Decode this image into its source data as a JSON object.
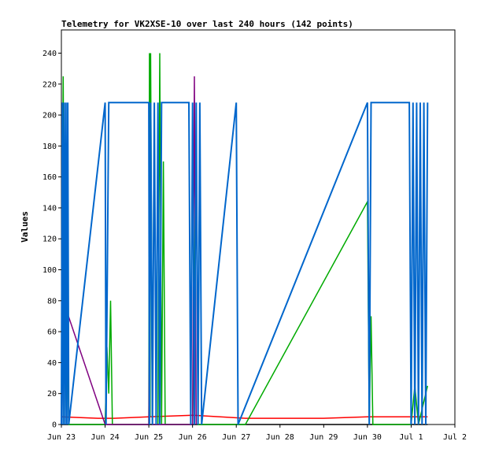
{
  "chart_data": {
    "type": "line",
    "title": "Telemetry for VK2XSE-10 over last 240 hours (142 points)",
    "ylabel": "Values",
    "xlabel": "",
    "ylim": [
      0,
      255
    ],
    "yticks": [
      0,
      20,
      40,
      60,
      80,
      100,
      120,
      140,
      160,
      180,
      200,
      220,
      240
    ],
    "xlim": [
      "2023-06-23T00:00",
      "2023-07-02T00:00"
    ],
    "xticks": [
      {
        "label": "Jun 23",
        "t": "2023-06-23T00:00"
      },
      {
        "label": "Jun 24",
        "t": "2023-06-24T00:00"
      },
      {
        "label": "Jun 25",
        "t": "2023-06-25T00:00"
      },
      {
        "label": "Jun 26",
        "t": "2023-06-26T00:00"
      },
      {
        "label": "Jun 27",
        "t": "2023-06-27T00:00"
      },
      {
        "label": "Jun 28",
        "t": "2023-06-28T00:00"
      },
      {
        "label": "Jun 29",
        "t": "2023-06-29T00:00"
      },
      {
        "label": "Jun 30",
        "t": "2023-06-30T00:00"
      },
      {
        "label": "Jul 1",
        "t": "2023-07-01T00:00"
      },
      {
        "label": "Jul 2",
        "t": "2023-07-02T00:00"
      }
    ],
    "grid": false,
    "series": [
      {
        "color": "#ff0000",
        "points": [
          [
            "2023-06-23T00:00",
            5
          ],
          [
            "2023-06-23T20:00",
            4
          ],
          [
            "2023-06-24T05:00",
            4
          ],
          [
            "2023-06-25T00:00",
            5
          ],
          [
            "2023-06-26T00:00",
            6
          ],
          [
            "2023-06-27T05:00",
            4
          ],
          [
            "2023-06-28T00:00",
            4
          ],
          [
            "2023-06-29T00:00",
            4
          ],
          [
            "2023-06-30T00:00",
            5
          ],
          [
            "2023-07-01T09:00",
            5
          ]
        ]
      },
      {
        "color": "#000000",
        "points": [
          [
            "2023-06-23T00:00",
            0
          ],
          [
            "2023-07-01T09:00",
            0
          ]
        ]
      },
      {
        "color": "#00aa00",
        "points": [
          [
            "2023-06-23T00:00",
            0
          ],
          [
            "2023-06-23T01:00",
            225
          ],
          [
            "2023-06-23T02:00",
            0
          ],
          [
            "2023-06-23T03:00",
            110
          ],
          [
            "2023-06-23T04:00",
            0
          ],
          [
            "2023-06-24T00:00",
            0
          ],
          [
            "2023-06-24T01:00",
            50
          ],
          [
            "2023-06-24T02:00",
            20
          ],
          [
            "2023-06-24T03:00",
            80
          ],
          [
            "2023-06-24T04:00",
            0
          ],
          [
            "2023-06-25T00:00",
            0
          ],
          [
            "2023-06-25T00:20",
            240
          ],
          [
            "2023-06-25T00:40",
            5
          ],
          [
            "2023-06-25T01:00",
            240
          ],
          [
            "2023-06-25T02:00",
            0
          ],
          [
            "2023-06-25T05:00",
            0
          ],
          [
            "2023-06-25T06:00",
            240
          ],
          [
            "2023-06-25T07:00",
            0
          ],
          [
            "2023-06-25T08:00",
            170
          ],
          [
            "2023-06-25T09:00",
            0
          ],
          [
            "2023-06-26T00:00",
            0
          ],
          [
            "2023-06-26T02:00",
            190
          ],
          [
            "2023-06-26T03:00",
            0
          ],
          [
            "2023-06-27T05:00",
            0
          ],
          [
            "2023-06-30T00:00",
            144
          ],
          [
            "2023-06-30T01:00",
            0
          ],
          [
            "2023-06-30T02:00",
            70
          ],
          [
            "2023-06-30T03:00",
            0
          ],
          [
            "2023-07-01T00:00",
            0
          ],
          [
            "2023-07-01T02:00",
            25
          ],
          [
            "2023-07-01T04:00",
            0
          ],
          [
            "2023-07-01T09:00",
            25
          ]
        ]
      },
      {
        "color": "#800080",
        "points": [
          [
            "2023-06-23T00:00",
            0
          ],
          [
            "2023-06-23T01:00",
            80
          ],
          [
            "2023-06-24T00:00",
            0
          ],
          [
            "2023-06-25T00:00",
            0
          ],
          [
            "2023-06-25T01:00",
            192
          ],
          [
            "2023-06-25T02:00",
            0
          ],
          [
            "2023-06-26T00:00",
            0
          ],
          [
            "2023-06-26T01:00",
            225
          ],
          [
            "2023-06-26T02:00",
            0
          ]
        ]
      },
      {
        "color": "#0066cc",
        "points": [
          [
            "2023-06-23T00:00",
            0
          ],
          [
            "2023-06-23T00:30",
            208
          ],
          [
            "2023-06-23T01:00",
            0
          ],
          [
            "2023-06-23T01:30",
            208
          ],
          [
            "2023-06-23T02:00",
            0
          ],
          [
            "2023-06-23T02:30",
            208
          ],
          [
            "2023-06-23T03:00",
            0
          ],
          [
            "2023-06-23T03:30",
            208
          ],
          [
            "2023-06-23T04:00",
            0
          ],
          [
            "2023-06-24T00:00",
            208
          ],
          [
            "2023-06-24T00:30",
            0
          ],
          [
            "2023-06-24T02:00",
            208
          ],
          [
            "2023-06-25T00:00",
            208
          ],
          [
            "2023-06-25T00:20",
            0
          ],
          [
            "2023-06-25T01:00",
            208
          ],
          [
            "2023-06-25T02:00",
            0
          ],
          [
            "2023-06-25T03:00",
            208
          ],
          [
            "2023-06-25T04:00",
            0
          ],
          [
            "2023-06-25T05:00",
            208
          ],
          [
            "2023-06-25T06:00",
            0
          ],
          [
            "2023-06-25T07:00",
            208
          ],
          [
            "2023-06-25T22:00",
            208
          ],
          [
            "2023-06-25T23:00",
            0
          ],
          [
            "2023-06-26T00:00",
            208
          ],
          [
            "2023-06-26T01:00",
            0
          ],
          [
            "2023-06-26T02:00",
            208
          ],
          [
            "2023-06-26T03:00",
            0
          ],
          [
            "2023-06-26T04:00",
            208
          ],
          [
            "2023-06-26T05:00",
            0
          ],
          [
            "2023-06-27T00:00",
            208
          ],
          [
            "2023-06-27T01:00",
            0
          ],
          [
            "2023-06-30T00:00",
            208
          ],
          [
            "2023-06-30T01:00",
            0
          ],
          [
            "2023-06-30T02:00",
            208
          ],
          [
            "2023-06-30T23:00",
            208
          ],
          [
            "2023-06-31T00:00",
            0
          ]
        ]
      },
      {
        "color": "#0066cc",
        "points": [
          [
            "2023-07-01T00:00",
            0
          ],
          [
            "2023-07-01T01:00",
            208
          ],
          [
            "2023-07-01T02:00",
            0
          ],
          [
            "2023-07-01T03:00",
            208
          ],
          [
            "2023-07-01T04:00",
            0
          ],
          [
            "2023-07-01T05:00",
            208
          ],
          [
            "2023-07-01T06:00",
            0
          ],
          [
            "2023-07-01T07:00",
            208
          ],
          [
            "2023-07-01T08:00",
            0
          ],
          [
            "2023-07-01T09:00",
            208
          ]
        ]
      }
    ]
  }
}
